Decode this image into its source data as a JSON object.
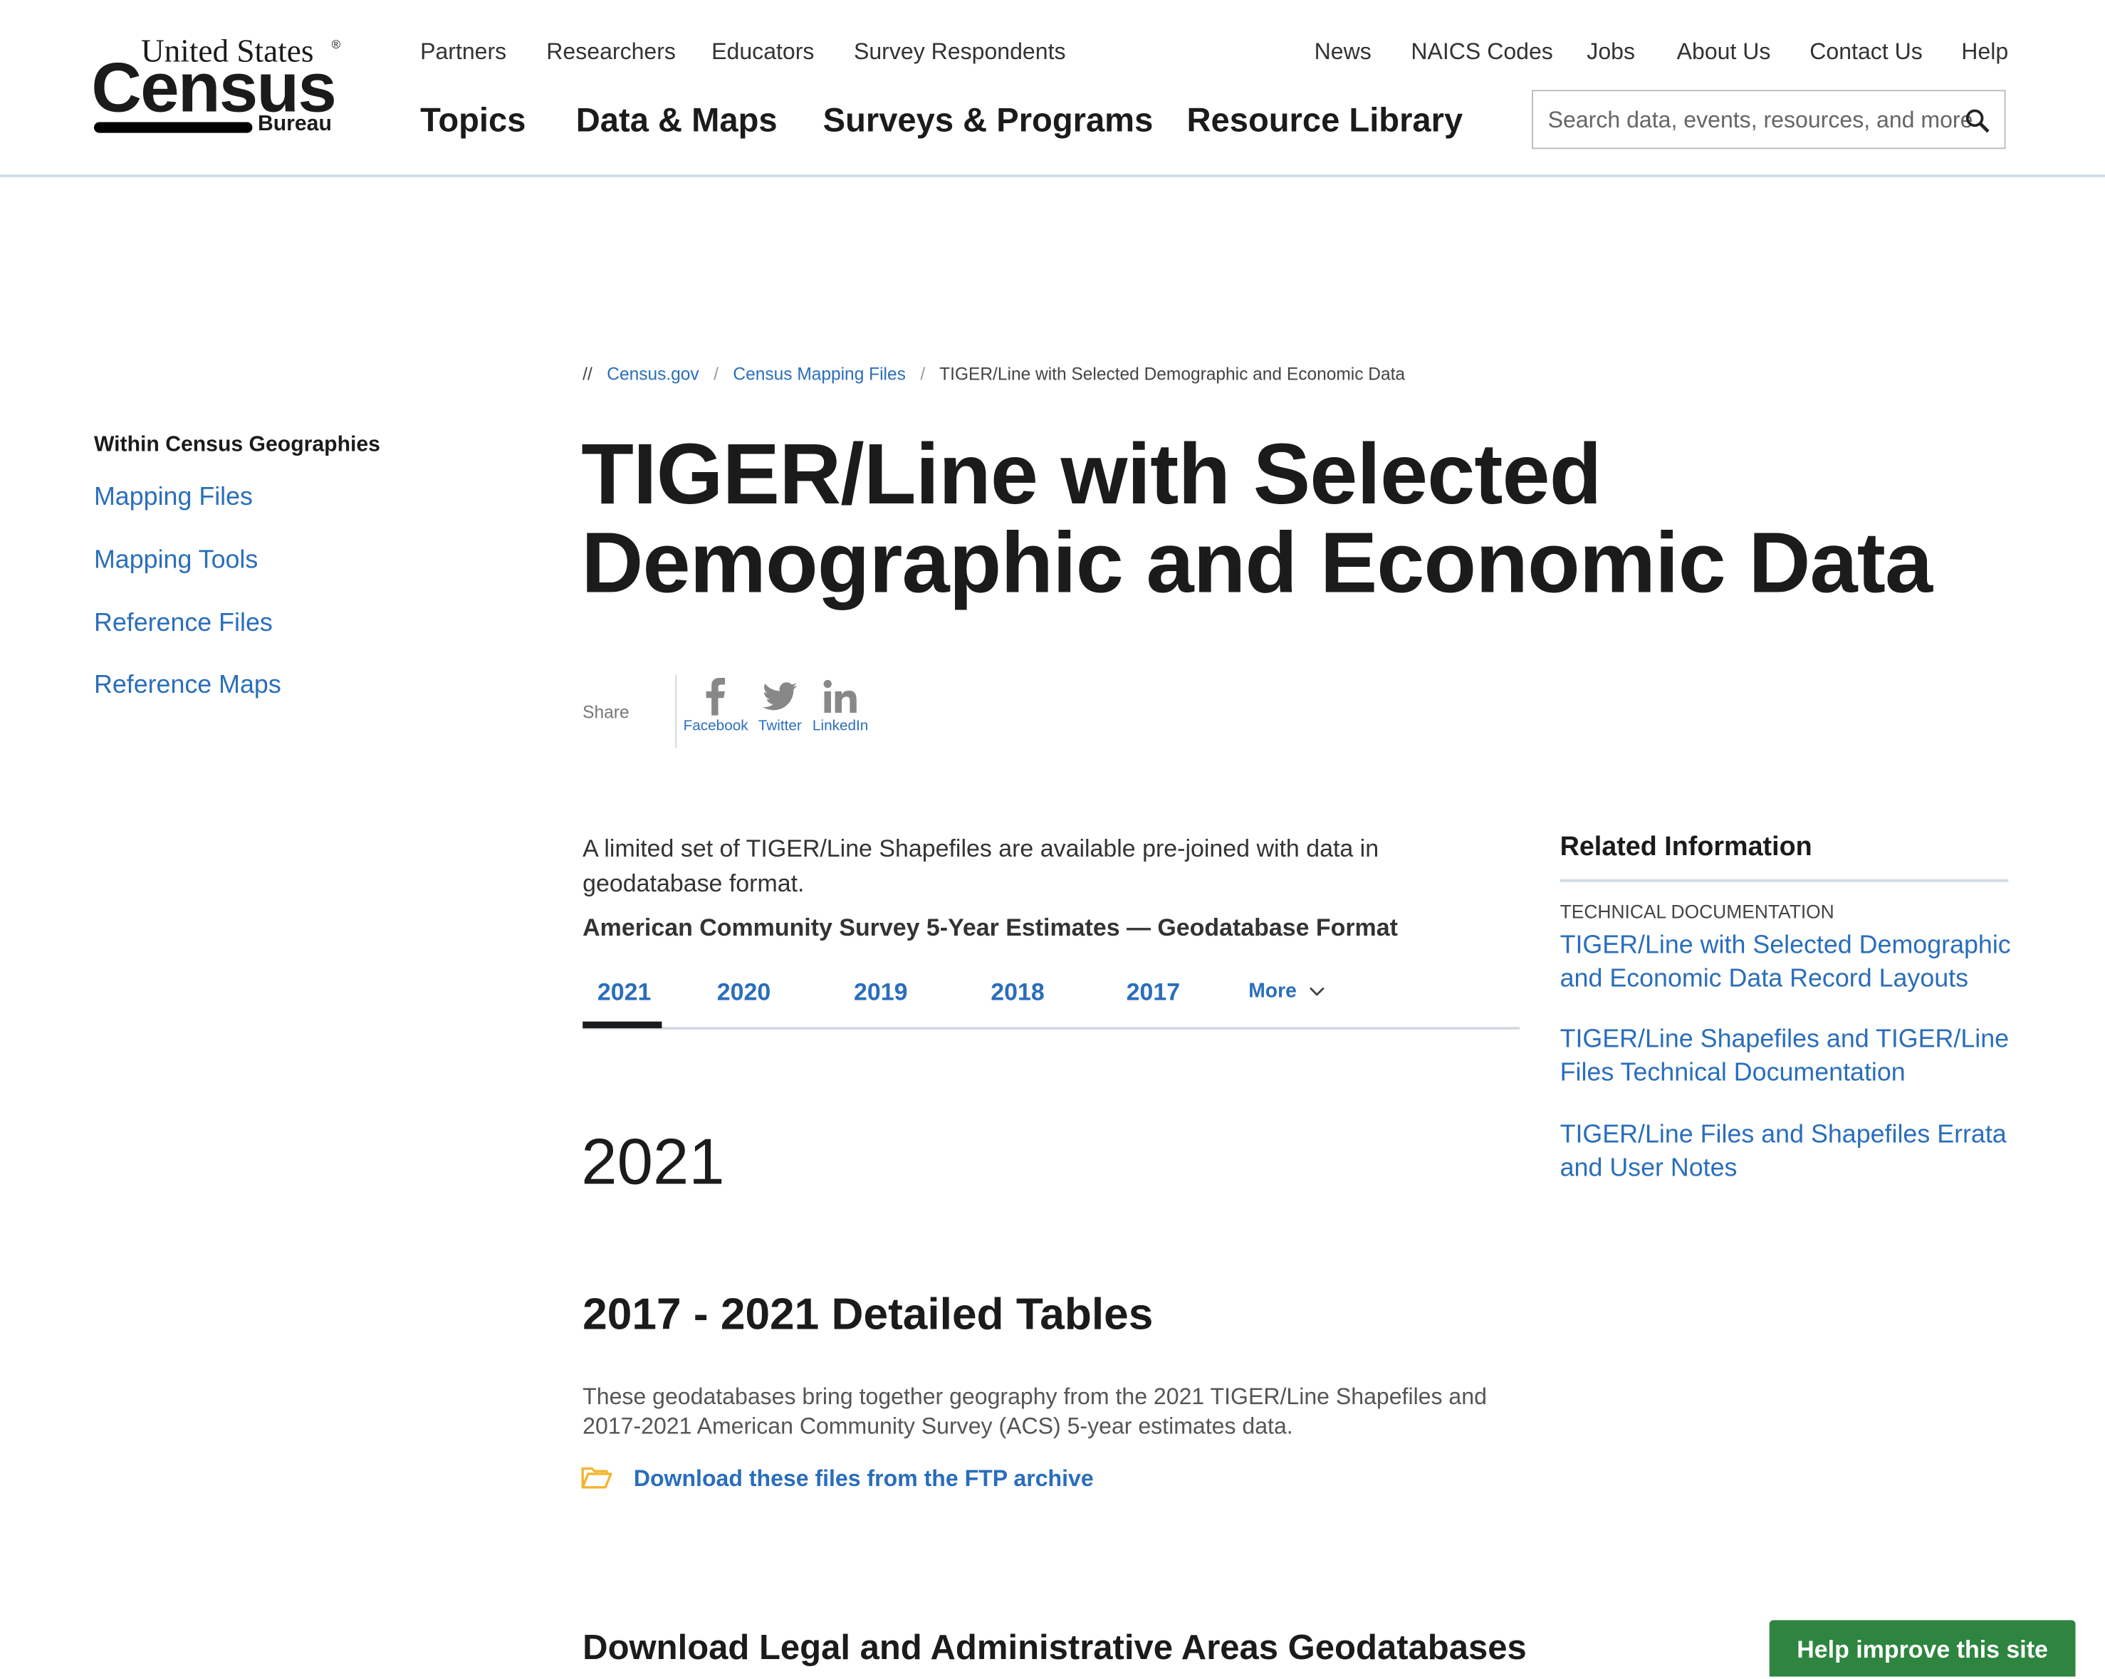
{
  "logo": {
    "line1": "United States",
    "line2": "Census",
    "line3": "Bureau"
  },
  "utility_nav": [
    "Partners",
    "Researchers",
    "Educators",
    "Survey Respondents"
  ],
  "utility_nav_right": [
    "News",
    "NAICS Codes",
    "Jobs",
    "About Us",
    "Contact Us",
    "Help"
  ],
  "main_nav": [
    "Topics",
    "Data & Maps",
    "Surveys & Programs",
    "Resource Library"
  ],
  "search": {
    "placeholder": "Search data, events, resources, and more",
    "icon": "search-icon"
  },
  "breadcrumb": {
    "sep0": "//",
    "items": [
      "Census.gov",
      "Census Mapping Files",
      "TIGER/Line with Selected Demographic and Economic Data"
    ],
    "sep": "/"
  },
  "sidebar": {
    "heading": "Within Census Geographies",
    "items": [
      "Mapping Files",
      "Mapping Tools",
      "Reference Files",
      "Reference Maps"
    ]
  },
  "title": {
    "line1": "TIGER/Line with Selected",
    "line2": "Demographic and Economic Data"
  },
  "share": {
    "label": "Share",
    "items": [
      "Facebook",
      "Twitter",
      "LinkedIn"
    ]
  },
  "intro": {
    "line1": "A limited set of TIGER/Line Shapefiles are available pre-joined with data in",
    "line2": "geodatabase format.",
    "subheading": "American Community Survey 5-Year Estimates — Geodatabase Format"
  },
  "tabs": {
    "items": [
      "2021",
      "2020",
      "2019",
      "2018",
      "2017"
    ],
    "more": "More",
    "active": "2021"
  },
  "section": {
    "year": "2021",
    "heading": "2017 - 2021 Detailed Tables",
    "desc1": "These geodatabases bring together geography from the 2021 TIGER/Line Shapefiles and",
    "desc2": "2017-2021 American Community Survey (ACS) 5-year estimates data.",
    "download": "Download these files from the FTP archive",
    "next_heading": "Download Legal and Administrative Areas Geodatabases"
  },
  "related": {
    "heading": "Related Information",
    "category": "TECHNICAL DOCUMENTATION",
    "links": [
      [
        "TIGER/Line with Selected Demographic",
        "and Economic Data Record Layouts"
      ],
      [
        "TIGER/Line Shapefiles and TIGER/Line",
        "Files Technical Documentation"
      ],
      [
        "TIGER/Line Files and Shapefiles Errata",
        "and User Notes"
      ]
    ]
  },
  "feedback": {
    "label": "Help improve this site",
    "color": "#2e8540"
  },
  "colors": {
    "link": "#2a6ebb",
    "text": "#1b1b1b"
  }
}
